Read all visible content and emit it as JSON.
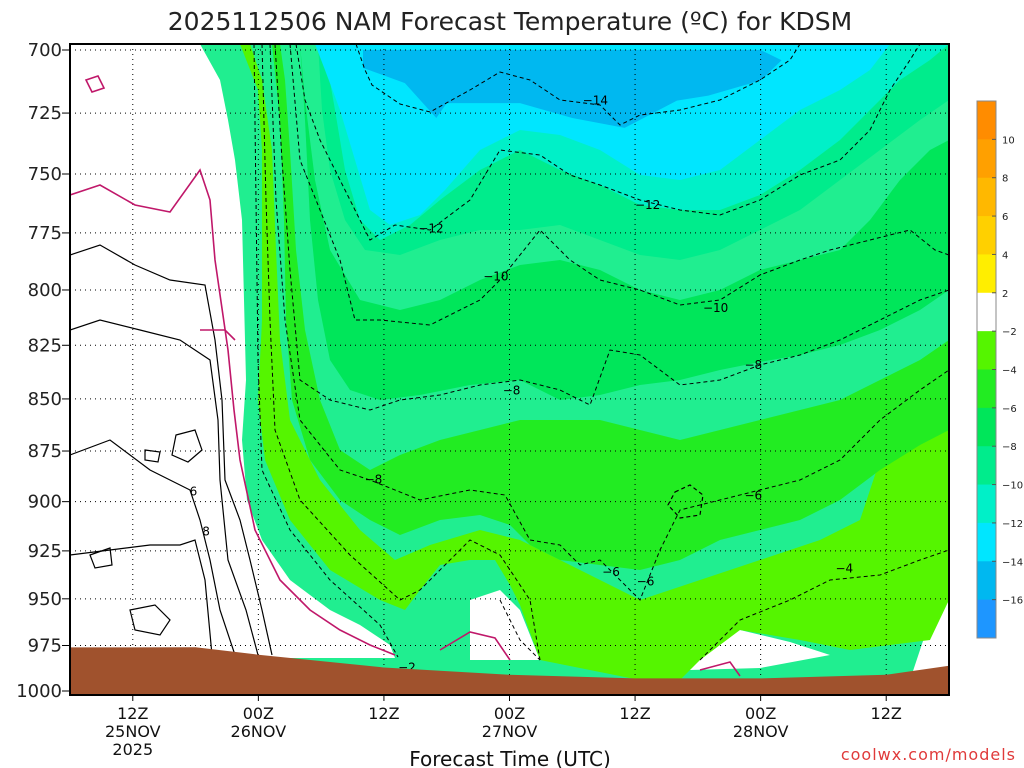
{
  "chart_data": {
    "type": "heatmap",
    "title": "2025112506 NAM Forecast Temperature (ºC) for KDSM",
    "xlabel": "Forecast Time (UTC)",
    "ylabel": "",
    "credit": "coolwx.com/models",
    "y_axis": {
      "unit": "hPa",
      "scale": "log-pressure",
      "inverted": true,
      "range": [
        1000,
        700
      ],
      "ticks": [
        "700",
        "725",
        "750",
        "775",
        "800",
        "825",
        "850",
        "875",
        "900",
        "925",
        "950",
        "975",
        "1000"
      ]
    },
    "x_axis": {
      "range_hours": [
        6,
        90
      ],
      "ticks": [
        {
          "hour": 12,
          "lines": [
            "12Z",
            "25NOV",
            "2025"
          ]
        },
        {
          "hour": 24,
          "lines": [
            "00Z",
            "26NOV"
          ]
        },
        {
          "hour": 36,
          "lines": [
            "12Z"
          ]
        },
        {
          "hour": 48,
          "lines": [
            "00Z",
            "27NOV"
          ]
        },
        {
          "hour": 60,
          "lines": [
            "12Z"
          ]
        },
        {
          "hour": 72,
          "lines": [
            "00Z",
            "28NOV"
          ]
        },
        {
          "hour": 84,
          "lines": [
            "12Z"
          ]
        }
      ]
    },
    "colorbar": {
      "labels": [
        "10",
        "8",
        "6",
        "4",
        "2",
        "−2",
        "−4",
        "−6",
        "−8",
        "−10",
        "−12",
        "−14",
        "−16"
      ],
      "bins": [
        {
          "range": [
            10,
            12
          ],
          "color": "#ff8c00"
        },
        {
          "range": [
            8,
            10
          ],
          "color": "#ffa000"
        },
        {
          "range": [
            6,
            8
          ],
          "color": "#ffb800"
        },
        {
          "range": [
            4,
            6
          ],
          "color": "#ffd000"
        },
        {
          "range": [
            2,
            4
          ],
          "color": "#ffee00"
        },
        {
          "range": [
            -2,
            2
          ],
          "color": "#ffffff"
        },
        {
          "range": [
            -4,
            -2
          ],
          "color": "#55f500"
        },
        {
          "range": [
            -6,
            -4
          ],
          "color": "#22ec22"
        },
        {
          "range": [
            -8,
            -6
          ],
          "color": "#00e65a"
        },
        {
          "range": [
            -10,
            -8
          ],
          "color": "#00ec8c"
        },
        {
          "range": [
            -12,
            -10
          ],
          "color": "#00f0c8"
        },
        {
          "range": [
            -14,
            -12
          ],
          "color": "#00e6ff"
        },
        {
          "range": [
            -16,
            -14
          ],
          "color": "#00b8f0"
        },
        {
          "range": [
            -18,
            -16
          ],
          "color": "#1e96ff"
        }
      ]
    },
    "contour_labels": [
      {
        "text": "−14",
        "hour": 56.2,
        "p": 720
      },
      {
        "text": "−12",
        "hour": 40.5,
        "p": 773
      },
      {
        "text": "−12",
        "hour": 61.2,
        "p": 763
      },
      {
        "text": "−10",
        "hour": 46.7,
        "p": 794
      },
      {
        "text": "−10",
        "hour": 67.7,
        "p": 808
      },
      {
        "text": "−8",
        "hour": 48.2,
        "p": 846
      },
      {
        "text": "−8",
        "hour": 71.3,
        "p": 834
      },
      {
        "text": "−8",
        "hour": 35.0,
        "p": 889
      },
      {
        "text": "−6",
        "hour": 71.3,
        "p": 897
      },
      {
        "text": "−6",
        "hour": 57.7,
        "p": 936
      },
      {
        "text": "−6",
        "hour": 61.0,
        "p": 941
      },
      {
        "text": "−4",
        "hour": 80.0,
        "p": 934
      },
      {
        "text": "−2",
        "hour": 38.2,
        "p": 987
      },
      {
        "text": "6",
        "hour": 17.8,
        "p": 895
      },
      {
        "text": "8",
        "hour": 19.0,
        "p": 915
      }
    ],
    "surface_pressure": [
      [
        6,
        976
      ],
      [
        18,
        976
      ],
      [
        24,
        980
      ],
      [
        36,
        987
      ],
      [
        48,
        991
      ],
      [
        60,
        993
      ],
      [
        72,
        993
      ],
      [
        84,
        991
      ],
      [
        90,
        986
      ]
    ],
    "regions": [
      {
        "name": "cold-core-top",
        "value": -15,
        "points": [
          [
            34,
            700
          ],
          [
            41,
            700
          ],
          [
            55,
            700
          ],
          [
            63,
            700
          ],
          [
            72,
            700
          ],
          [
            74,
            704
          ],
          [
            72,
            712
          ],
          [
            67,
            718
          ],
          [
            64,
            720
          ],
          [
            59,
            731
          ],
          [
            54,
            727
          ],
          [
            49,
            721
          ],
          [
            42,
            721
          ],
          [
            41,
            727
          ],
          [
            38,
            713
          ],
          [
            34,
            707
          ]
        ]
      }
    ],
    "grid": true,
    "legend": "right-colorbar"
  }
}
